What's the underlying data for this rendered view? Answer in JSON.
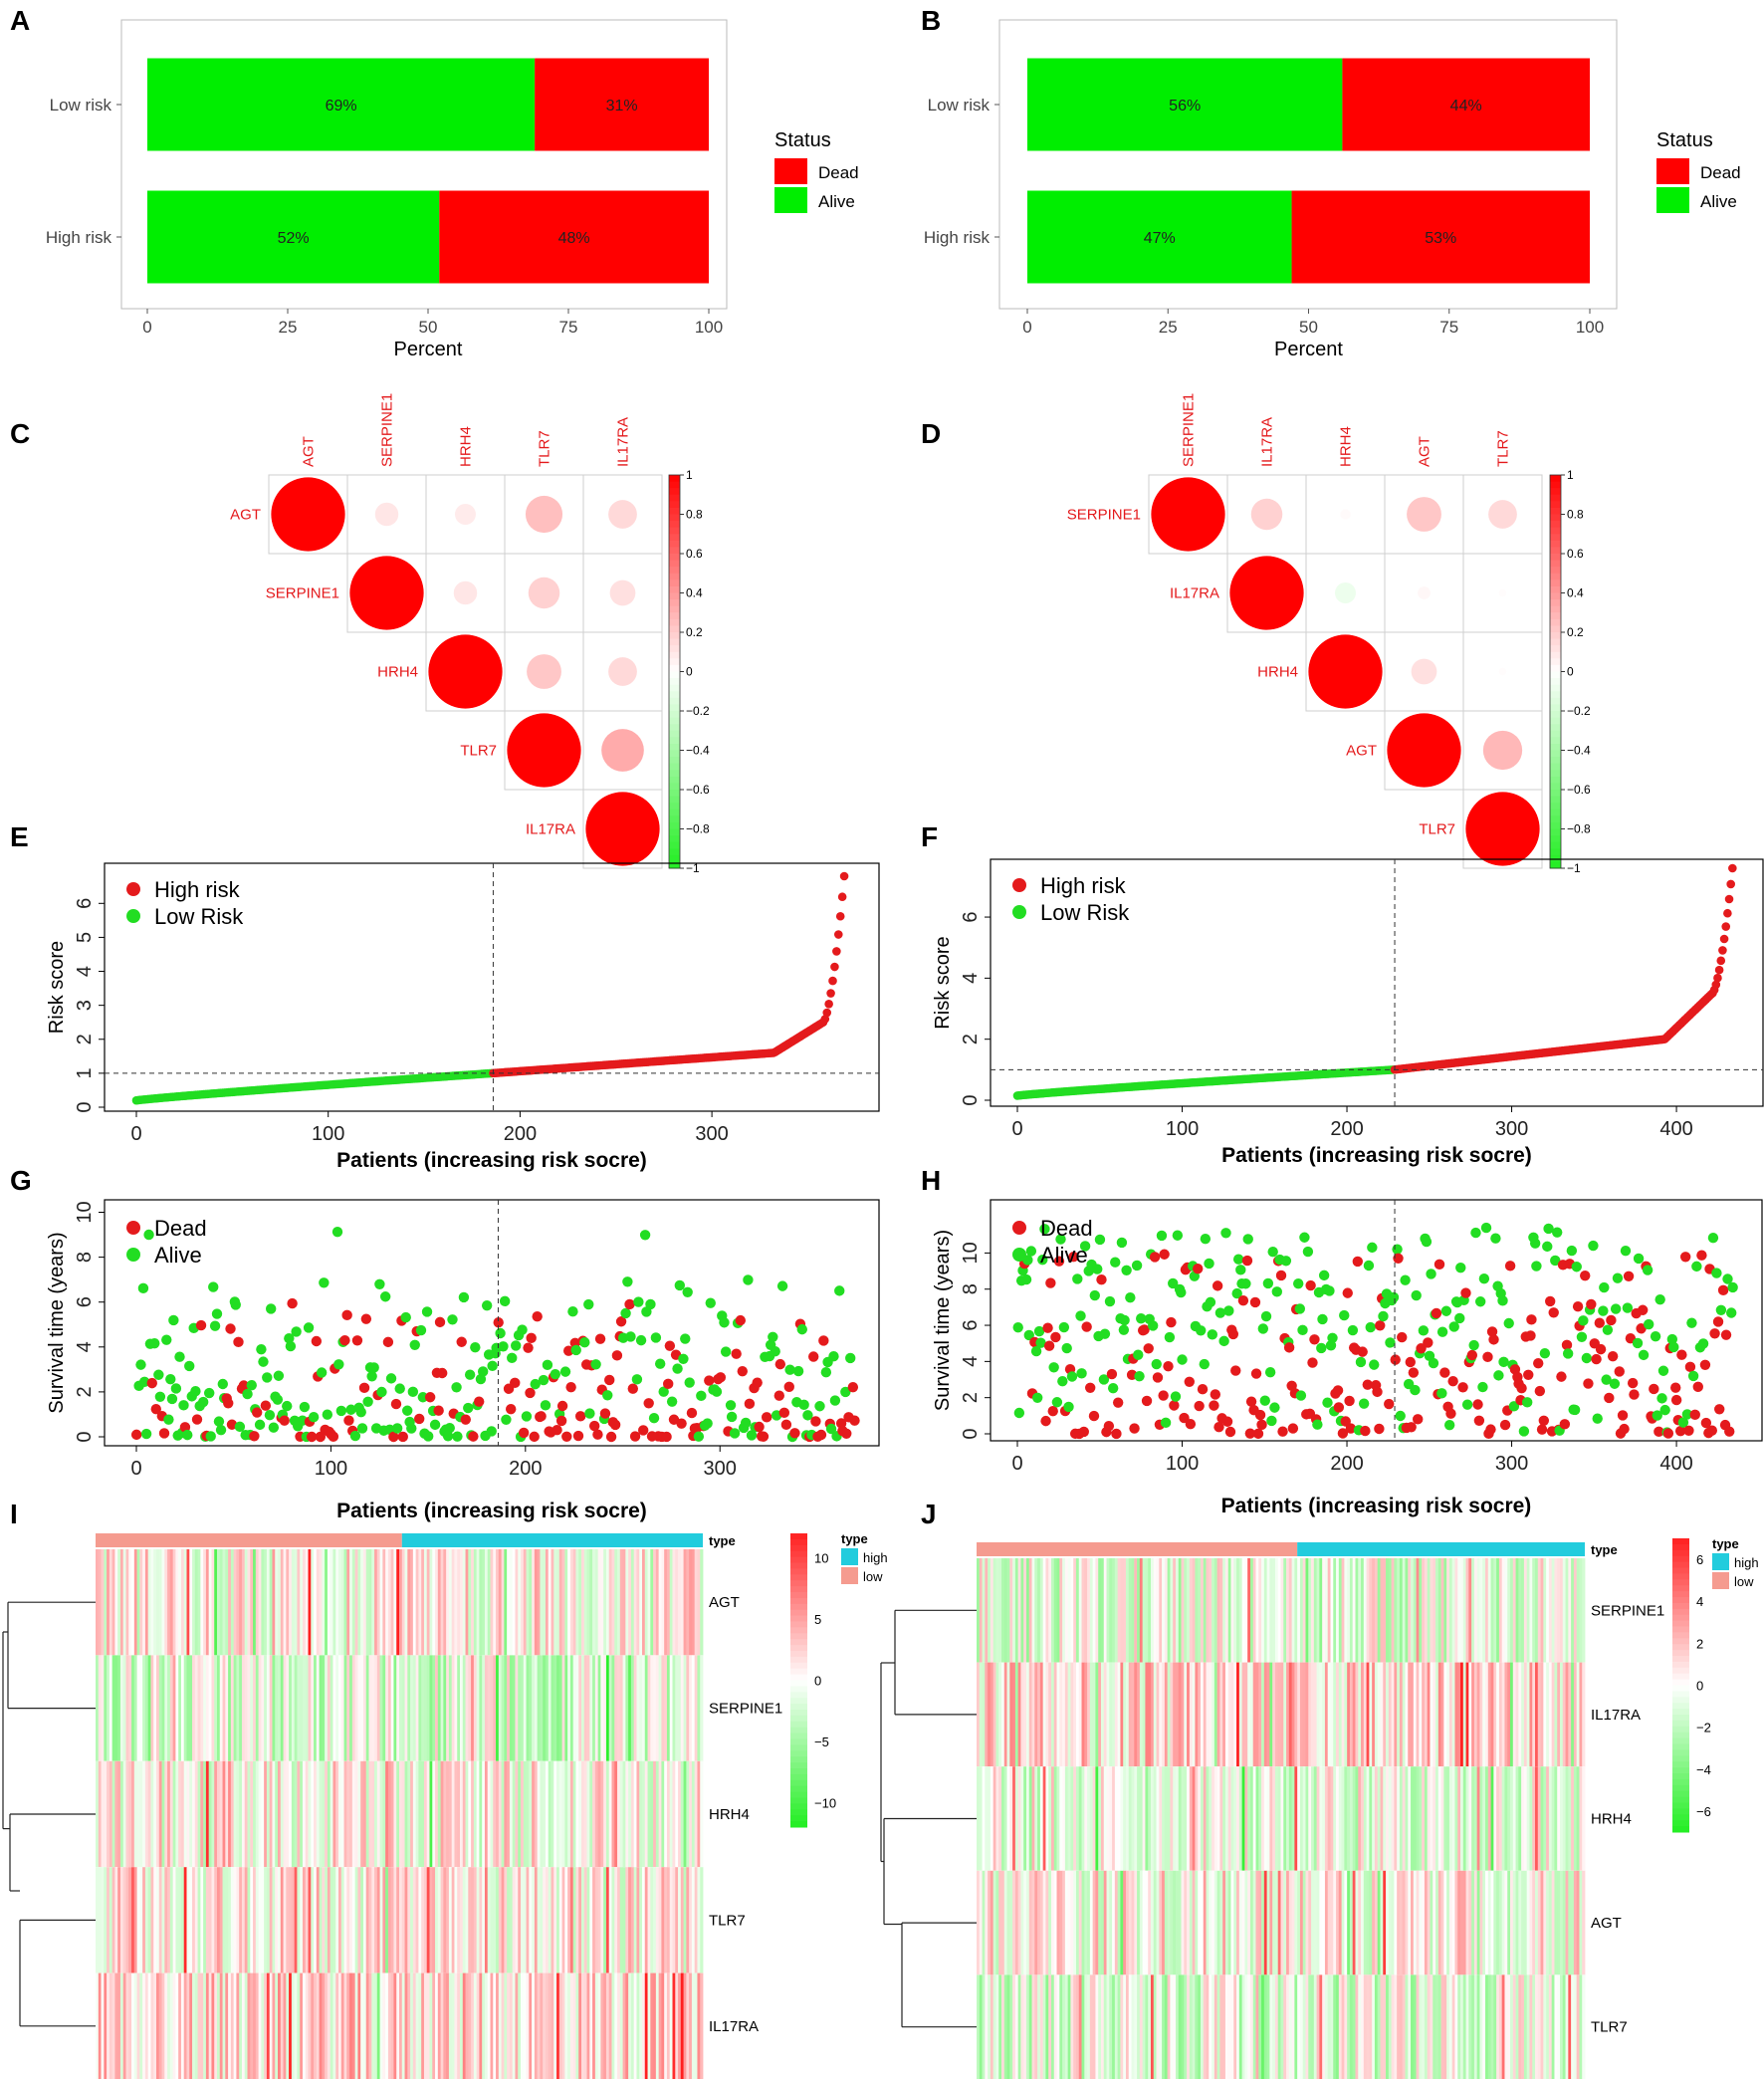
{
  "colors": {
    "dead": "#ff0000",
    "alive": "#00ee00",
    "scatter_red": "#e41a1c",
    "scatter_green": "#22dd22",
    "heat_pos": "#ff2020",
    "heat_neg": "#22ee22",
    "type_high": "#22ccdd",
    "type_low": "#f59b8f"
  },
  "chart_data": [
    {
      "panel": "A",
      "type": "bar",
      "orientation": "horizontal",
      "stacked": true,
      "categories": [
        "Low risk",
        "High risk"
      ],
      "series": [
        {
          "name": "Alive",
          "values": [
            69,
            52
          ]
        },
        {
          "name": "Dead",
          "values": [
            31,
            48
          ]
        }
      ],
      "value_labels": [
        [
          "69%",
          "31%"
        ],
        [
          "52%",
          "48%"
        ]
      ],
      "xlabel": "Percent",
      "xticks": [
        "0",
        "25",
        "50",
        "75",
        "100"
      ],
      "xlim": [
        0,
        100
      ],
      "legend": {
        "title": "Status",
        "entries": [
          "Dead",
          "Alive"
        ],
        "position": "right"
      }
    },
    {
      "panel": "B",
      "type": "bar",
      "orientation": "horizontal",
      "stacked": true,
      "categories": [
        "Low risk",
        "High risk"
      ],
      "series": [
        {
          "name": "Alive",
          "values": [
            56,
            47
          ]
        },
        {
          "name": "Dead",
          "values": [
            44,
            53
          ]
        }
      ],
      "value_labels": [
        [
          "56%",
          "44%"
        ],
        [
          "47%",
          "53%"
        ]
      ],
      "xlabel": "Percent",
      "xticks": [
        "0",
        "25",
        "50",
        "75",
        "100"
      ],
      "xlim": [
        0,
        100
      ],
      "legend": {
        "title": "Status",
        "entries": [
          "Dead",
          "Alive"
        ],
        "position": "right"
      }
    },
    {
      "panel": "C",
      "type": "heatmap",
      "style": "correlation-circles-upper",
      "labels": [
        "AGT",
        "SERPINE1",
        "HRH4",
        "TLR7",
        "IL17RA"
      ],
      "matrix": [
        [
          1.0,
          0.1,
          0.08,
          0.25,
          0.15
        ],
        [
          0.1,
          1.0,
          0.1,
          0.18,
          0.12
        ],
        [
          0.08,
          0.1,
          1.0,
          0.22,
          0.15
        ],
        [
          0.25,
          0.18,
          0.22,
          1.0,
          0.33
        ],
        [
          0.15,
          0.12,
          0.15,
          0.33,
          1.0
        ]
      ],
      "colorbar_ticks": [
        "1",
        "0.8",
        "0.6",
        "0.4",
        "0.2",
        "0",
        "−0.2",
        "−0.4",
        "−0.6",
        "−0.8",
        "−1"
      ],
      "colorbar_range": [
        -1,
        1
      ]
    },
    {
      "panel": "D",
      "type": "heatmap",
      "style": "correlation-circles-upper",
      "labels": [
        "SERPINE1",
        "IL17RA",
        "HRH4",
        "AGT",
        "TLR7"
      ],
      "matrix": [
        [
          1.0,
          0.18,
          0.02,
          0.22,
          0.15
        ],
        [
          0.18,
          1.0,
          -0.08,
          0.03,
          0.01
        ],
        [
          0.02,
          -0.08,
          1.0,
          0.12,
          0.01
        ],
        [
          0.22,
          0.03,
          0.12,
          1.0,
          0.28
        ],
        [
          0.15,
          0.01,
          0.01,
          0.28,
          1.0
        ]
      ],
      "colorbar_ticks": [
        "1",
        "0.8",
        "0.6",
        "0.4",
        "0.2",
        "0",
        "−0.2",
        "−0.4",
        "−0.6",
        "−0.8",
        "−1"
      ],
      "colorbar_range": [
        -1,
        1
      ]
    },
    {
      "panel": "E",
      "type": "scatter",
      "n_patients": 370,
      "cutoff_index": 186,
      "cutoff_score": 1.0,
      "xlim": [
        0,
        370
      ],
      "ylim": [
        0,
        6.8
      ],
      "xticks": [
        "0",
        "100",
        "200",
        "300"
      ],
      "yticks": [
        "0",
        "1",
        "2",
        "3",
        "4",
        "5",
        "6"
      ],
      "xlabel": "Patients (increasing risk socre)",
      "ylabel": "Risk score",
      "legend": [
        "High risk",
        "Low Risk"
      ],
      "score_curve": {
        "start": 0.2,
        "cutoff": 1.0,
        "p90": 1.6,
        "p97": 2.5,
        "max": 6.8
      }
    },
    {
      "panel": "F",
      "type": "scatter",
      "n_patients": 435,
      "cutoff_index": 229,
      "cutoff_score": 1.0,
      "xlim": [
        0,
        435
      ],
      "ylim": [
        0,
        7.6
      ],
      "xticks": [
        "0",
        "100",
        "200",
        "300",
        "400"
      ],
      "yticks": [
        "0",
        "2",
        "4",
        "6"
      ],
      "xlabel": "Patients (increasing risk socre)",
      "ylabel": "Risk score",
      "legend": [
        "High risk",
        "Low Risk"
      ],
      "score_curve": {
        "start": 0.15,
        "cutoff": 1.0,
        "p90": 2.0,
        "p97": 3.5,
        "max": 7.6
      }
    },
    {
      "panel": "G",
      "type": "scatter",
      "n_patients": 370,
      "cutoff_index": 186,
      "xlim": [
        0,
        370
      ],
      "ylim": [
        0,
        10.2
      ],
      "xticks": [
        "0",
        "100",
        "200",
        "300"
      ],
      "yticks": [
        "0",
        "2",
        "4",
        "6",
        "8",
        "10"
      ],
      "xlabel": "Patients (increasing risk socre)",
      "ylabel": "Survival time (years)",
      "legend": [
        "Dead",
        "Alive"
      ],
      "dead_fraction": {
        "low_risk": 0.31,
        "high_risk": 0.48
      }
    },
    {
      "panel": "H",
      "type": "scatter",
      "n_patients": 435,
      "cutoff_index": 229,
      "xlim": [
        0,
        435
      ],
      "ylim": [
        0,
        12.5
      ],
      "xticks": [
        "0",
        "100",
        "200",
        "300",
        "400"
      ],
      "yticks": [
        "0",
        "2",
        "4",
        "6",
        "8",
        "10"
      ],
      "xlabel": "Patients (increasing risk socre)",
      "ylabel": "Survival time (years)",
      "legend": [
        "Dead",
        "Alive"
      ],
      "dead_fraction": {
        "low_risk": 0.44,
        "high_risk": 0.53
      }
    },
    {
      "panel": "I",
      "type": "heatmap",
      "style": "expression-heatmap",
      "genes": [
        "AGT",
        "SERPINE1",
        "HRH4",
        "TLR7",
        "IL17RA"
      ],
      "type_label": "type",
      "type_legend": {
        "title": "type",
        "entries": [
          "high",
          "low"
        ]
      },
      "low_fraction": 0.503,
      "colorbar_ticks": [
        "10",
        "5",
        "0",
        "−5",
        "−10"
      ],
      "colorbar_range": [
        -12,
        12
      ],
      "gene_bias": [
        0.1,
        -0.25,
        0.05,
        0.15,
        0.3
      ]
    },
    {
      "panel": "J",
      "type": "heatmap",
      "style": "expression-heatmap",
      "genes": [
        "SERPINE1",
        "IL17RA",
        "HRH4",
        "AGT",
        "TLR7"
      ],
      "type_label": "type",
      "type_legend": {
        "title": "type",
        "entries": [
          "high",
          "low"
        ]
      },
      "low_fraction": 0.527,
      "colorbar_ticks": [
        "6",
        "4",
        "2",
        "0",
        "−2",
        "−4",
        "−6"
      ],
      "colorbar_range": [
        -7,
        7
      ],
      "gene_bias": [
        -0.15,
        0.3,
        -0.1,
        0.1,
        -0.2
      ]
    }
  ]
}
